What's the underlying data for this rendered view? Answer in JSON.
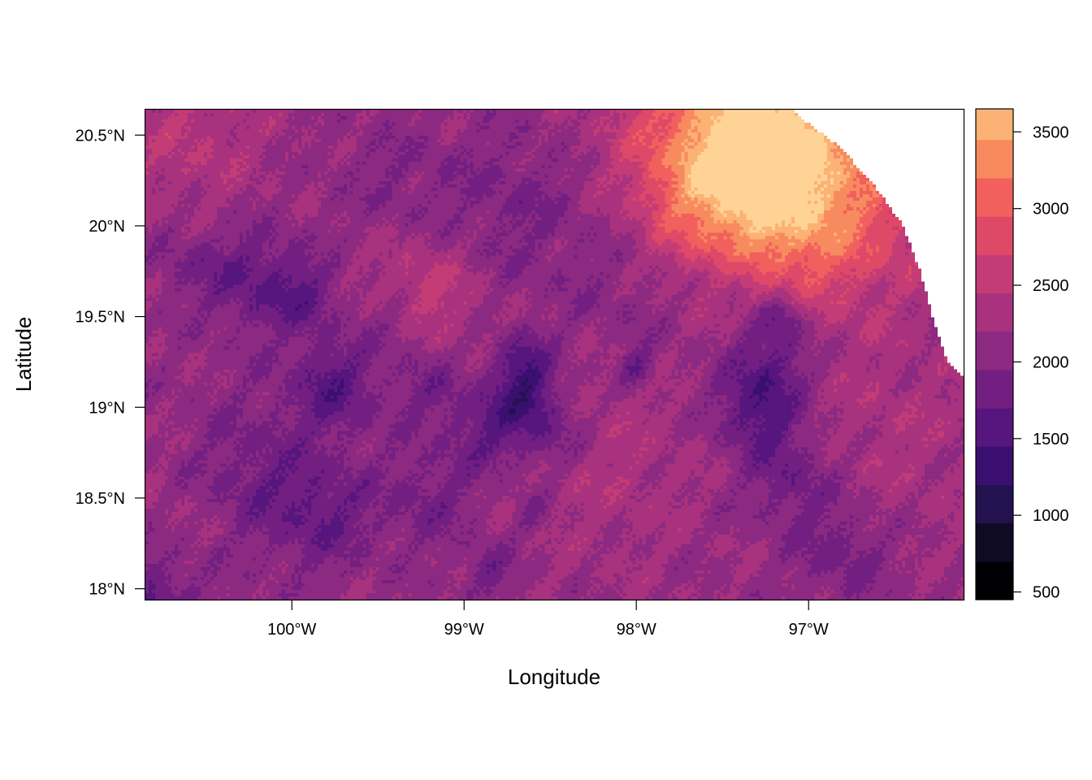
{
  "chart_data": {
    "type": "heatmap",
    "title": "",
    "xlabel": "Longitude",
    "ylabel": "Latitude",
    "x_range_deg": [
      -100.85,
      -96.1
    ],
    "y_range_deg": [
      17.94,
      20.64
    ],
    "x_ticks": [
      {
        "value": -100,
        "label": "100°W"
      },
      {
        "value": -99,
        "label": "99°W"
      },
      {
        "value": -98,
        "label": "98°W"
      },
      {
        "value": -97,
        "label": "97°W"
      }
    ],
    "y_ticks": [
      {
        "value": 18,
        "label": "18°N"
      },
      {
        "value": 18.5,
        "label": "18.5°N"
      },
      {
        "value": 19,
        "label": "19°N"
      },
      {
        "value": 19.5,
        "label": "19.5°N"
      },
      {
        "value": 20,
        "label": "20°N"
      },
      {
        "value": 20.5,
        "label": "20.5°N"
      }
    ],
    "legend": {
      "placement": "right",
      "range": [
        450,
        3650
      ],
      "breaks": [
        450,
        700,
        950,
        1200,
        1450,
        1700,
        1950,
        2200,
        2450,
        2700,
        2950,
        3200,
        3450,
        3650
      ],
      "colors": [
        "#000004",
        "#0f0b25",
        "#23124f",
        "#3b0f70",
        "#57157e",
        "#721f81",
        "#8c2981",
        "#a8327d",
        "#c43c75",
        "#de4968",
        "#f1605d",
        "#f88a5f",
        "#fcb274",
        "#fed395",
        "#fcfdbf"
      ],
      "ticks": [
        {
          "value": 500,
          "label": "500"
        },
        {
          "value": 1000,
          "label": "1000"
        },
        {
          "value": 1500,
          "label": "1500"
        },
        {
          "value": 2000,
          "label": "2000"
        },
        {
          "value": 2500,
          "label": "2500"
        },
        {
          "value": 3000,
          "label": "3000"
        },
        {
          "value": 3500,
          "label": "3500"
        }
      ]
    },
    "features": {
      "base": 2150,
      "bumps": [
        {
          "lon": -97.35,
          "lat": 20.52,
          "v": 1300,
          "s": 0.45
        },
        {
          "lon": -97.05,
          "lat": 20.3,
          "v": 700,
          "s": 0.35
        },
        {
          "lon": -97.6,
          "lat": 20.15,
          "v": 500,
          "s": 0.3
        },
        {
          "lon": -97.0,
          "lat": 19.85,
          "v": 350,
          "s": 0.3
        },
        {
          "lon": -96.5,
          "lat": 20.0,
          "v": 300,
          "s": 0.3
        },
        {
          "lon": -100.6,
          "lat": 20.5,
          "v": 300,
          "s": 0.3
        },
        {
          "lon": -99.3,
          "lat": 19.7,
          "v": 200,
          "s": 0.3
        },
        {
          "lon": -98.2,
          "lat": 18.7,
          "v": 200,
          "s": 0.4
        },
        {
          "lon": -100.7,
          "lat": 18.3,
          "v": 150,
          "s": 0.3
        },
        {
          "lon": -96.5,
          "lat": 18.9,
          "v": 200,
          "s": 0.4
        },
        {
          "lon": -97.3,
          "lat": 19.0,
          "v": -650,
          "s": 0.17
        },
        {
          "lon": -97.2,
          "lat": 19.3,
          "v": -450,
          "s": 0.16
        },
        {
          "lon": -97.15,
          "lat": 19.5,
          "v": -450,
          "s": 0.1
        },
        {
          "lon": -97.1,
          "lat": 18.6,
          "v": -400,
          "s": 0.18
        },
        {
          "lon": -96.8,
          "lat": 18.2,
          "v": -350,
          "s": 0.18
        },
        {
          "lon": -98.65,
          "lat": 19.25,
          "v": -550,
          "s": 0.12
        },
        {
          "lon": -98.65,
          "lat": 19.05,
          "v": -550,
          "s": 0.12
        },
        {
          "lon": -98.85,
          "lat": 18.88,
          "v": -450,
          "s": 0.16
        },
        {
          "lon": -98.5,
          "lat": 18.85,
          "v": -400,
          "s": 0.15
        },
        {
          "lon": -99.4,
          "lat": 19.45,
          "v": -300,
          "s": 0.13
        },
        {
          "lon": -99.2,
          "lat": 19.1,
          "v": -300,
          "s": 0.15
        },
        {
          "lon": -99.75,
          "lat": 19.12,
          "v": -550,
          "s": 0.17
        },
        {
          "lon": -100.2,
          "lat": 19.7,
          "v": -450,
          "s": 0.2
        },
        {
          "lon": -99.9,
          "lat": 19.6,
          "v": -350,
          "s": 0.15
        },
        {
          "lon": -100.2,
          "lat": 18.6,
          "v": -350,
          "s": 0.3
        },
        {
          "lon": -99.8,
          "lat": 18.4,
          "v": -350,
          "s": 0.2
        },
        {
          "lon": -99.2,
          "lat": 18.5,
          "v": -300,
          "s": 0.2
        },
        {
          "lon": -98.0,
          "lat": 19.22,
          "v": -450,
          "s": 0.07
        },
        {
          "lon": -97.45,
          "lat": 19.7,
          "v": -250,
          "s": 0.1
        },
        {
          "lon": -98.7,
          "lat": 20.1,
          "v": -250,
          "s": 0.3
        },
        {
          "lon": -100.6,
          "lat": 19.8,
          "v": -250,
          "s": 0.15
        },
        {
          "lon": -100.8,
          "lat": 17.96,
          "v": -500,
          "s": 0.2
        },
        {
          "lon": -98.0,
          "lat": 19.7,
          "v": -200,
          "s": 0.3
        },
        {
          "lon": -98.85,
          "lat": 18.1,
          "v": -350,
          "s": 0.1
        },
        {
          "lon": -98.6,
          "lat": 18.4,
          "v": -300,
          "s": 0.08
        },
        {
          "lon": -99.2,
          "lat": 19.6,
          "v": 250,
          "s": 0.18
        },
        {
          "lon": -99.4,
          "lat": 20.2,
          "v": -200,
          "s": 0.25
        }
      ],
      "no_data_edge": [
        {
          "lon": -97.1,
          "lat": 20.64
        },
        {
          "lon": -96.8,
          "lat": 20.42
        },
        {
          "lon": -96.6,
          "lat": 20.2
        },
        {
          "lon": -96.45,
          "lat": 20.0
        },
        {
          "lon": -96.35,
          "lat": 19.75
        },
        {
          "lon": -96.28,
          "lat": 19.5
        },
        {
          "lon": -96.2,
          "lat": 19.27
        },
        {
          "lon": -96.1,
          "lat": 19.16
        }
      ]
    }
  }
}
